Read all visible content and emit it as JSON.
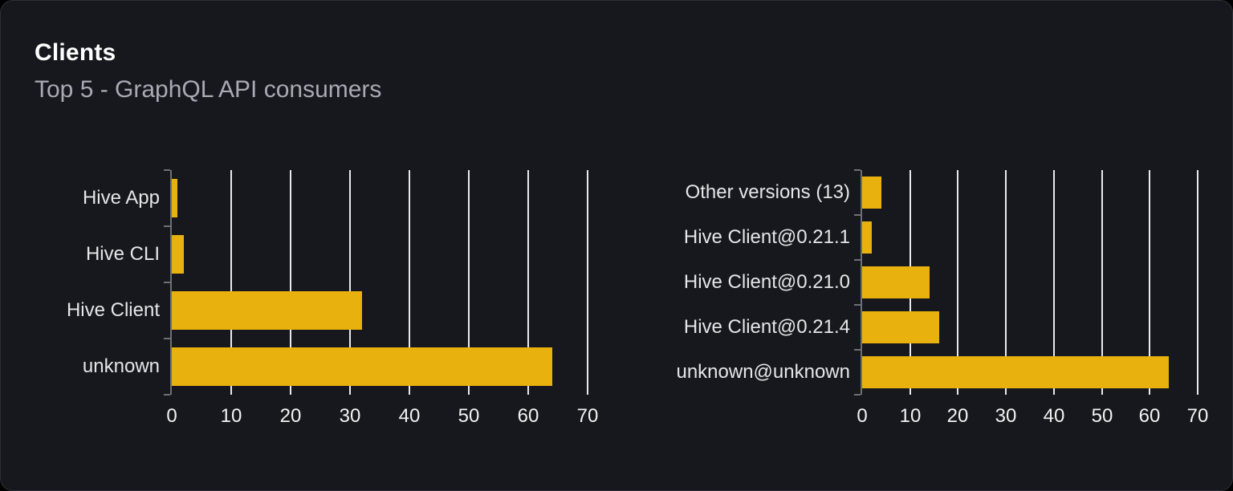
{
  "header": {
    "title": "Clients",
    "subtitle": "Top 5 - GraphQL API consumers"
  },
  "colors": {
    "page_background": "#000000",
    "card_background": "#16181d",
    "card_border": "#2b2e35",
    "bar": "#e8b10e",
    "gridline": "#e7e9ee",
    "axis": "#6d7077",
    "title_text": "#ffffff",
    "subtitle_text": "#a8abb3",
    "category_label": "#e4e6e9",
    "tick_label": "#f1f2f4"
  },
  "chart_data": [
    {
      "type": "bar",
      "orientation": "horizontal",
      "name": "clients",
      "categories": [
        "Hive App",
        "Hive CLI",
        "Hive Client",
        "unknown"
      ],
      "values": [
        1,
        2,
        32,
        64
      ],
      "xlim": [
        0,
        70
      ],
      "xticks": [
        0,
        10,
        20,
        30,
        40,
        50,
        60,
        70
      ],
      "grid": true,
      "legend": false
    },
    {
      "type": "bar",
      "orientation": "horizontal",
      "name": "client-versions",
      "categories": [
        "Other versions (13)",
        "Hive Client@0.21.1",
        "Hive Client@0.21.0",
        "Hive Client@0.21.4",
        "unknown@unknown"
      ],
      "values": [
        4,
        2,
        14,
        16,
        64
      ],
      "xlim": [
        0,
        70
      ],
      "xticks": [
        0,
        10,
        20,
        30,
        40,
        50,
        60,
        70
      ],
      "grid": true,
      "legend": false
    }
  ]
}
